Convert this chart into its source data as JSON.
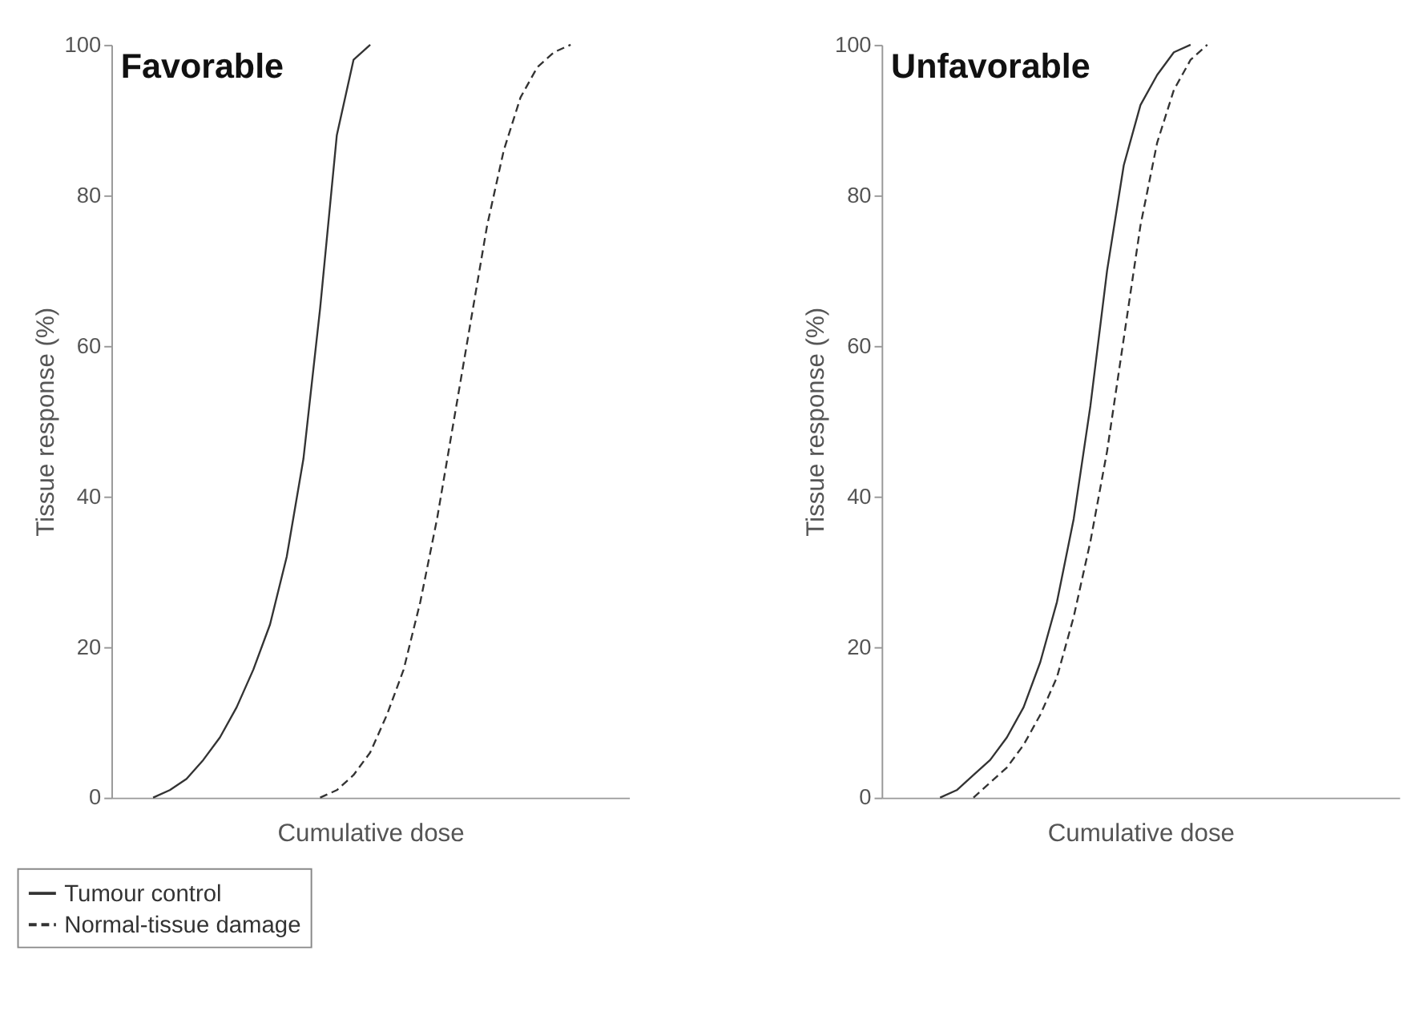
{
  "chart_data": [
    {
      "type": "line",
      "title": "Favorable",
      "xlabel": "Cumulative dose",
      "ylabel": "Tissue response (%)",
      "categories": [
        null,
        null,
        null,
        null,
        null,
        null,
        null,
        null,
        null,
        null,
        null,
        null,
        null,
        null,
        null,
        null,
        null,
        null,
        null,
        null,
        null,
        null,
        null,
        null,
        null,
        null,
        null,
        null,
        null,
        null,
        null
      ],
      "series": [
        {
          "name": "Tumour control",
          "color": "#333333",
          "line_style": "solid",
          "values": [
            null,
            null,
            0,
            1,
            2.5,
            5,
            8,
            12,
            17,
            23,
            32,
            45,
            65,
            88,
            98,
            100,
            null,
            null,
            null,
            null,
            null,
            null,
            null,
            null,
            null,
            null,
            null,
            null,
            null,
            null,
            null
          ]
        },
        {
          "name": "Normal-tissue damage",
          "color": "#333333",
          "line_style": "dashed",
          "values": [
            null,
            null,
            null,
            null,
            null,
            null,
            null,
            null,
            null,
            null,
            null,
            null,
            0,
            1,
            3,
            6,
            11,
            17,
            26,
            37,
            50,
            63,
            76,
            86,
            93,
            97,
            99,
            100,
            null,
            null,
            null
          ]
        }
      ],
      "ylim": [
        0,
        100
      ],
      "yticks": [
        0,
        20,
        40,
        60,
        80,
        100
      ],
      "grid": false,
      "legend": "bottom left"
    },
    {
      "type": "line",
      "title": "Unfavorable",
      "xlabel": "Cumulative dose",
      "ylabel": "Tissue response (%)",
      "categories": [
        null,
        null,
        null,
        null,
        null,
        null,
        null,
        null,
        null,
        null,
        null,
        null,
        null,
        null,
        null,
        null,
        null,
        null,
        null,
        null,
        null,
        null,
        null,
        null,
        null,
        null,
        null,
        null,
        null,
        null,
        null
      ],
      "series": [
        {
          "name": "Tumour control",
          "color": "#333333",
          "line_style": "solid",
          "values": [
            null,
            null,
            null,
            0,
            1,
            3,
            5,
            8,
            12,
            18,
            26,
            37,
            52,
            70,
            84,
            92,
            96,
            99,
            100,
            null,
            null,
            null,
            null,
            null,
            null,
            null,
            null,
            null,
            null,
            null,
            null
          ]
        },
        {
          "name": "Normal-tissue damage",
          "color": "#333333",
          "line_style": "dashed",
          "values": [
            null,
            null,
            null,
            null,
            null,
            0,
            2,
            4,
            7,
            11,
            16,
            24,
            34,
            46,
            61,
            76,
            87,
            94,
            98,
            100,
            null,
            null,
            null,
            null,
            null,
            null,
            null,
            null,
            null,
            null,
            null
          ]
        }
      ],
      "ylim": [
        0,
        100
      ],
      "yticks": [
        0,
        20,
        40,
        60,
        80,
        100
      ],
      "grid": false
    }
  ]
}
